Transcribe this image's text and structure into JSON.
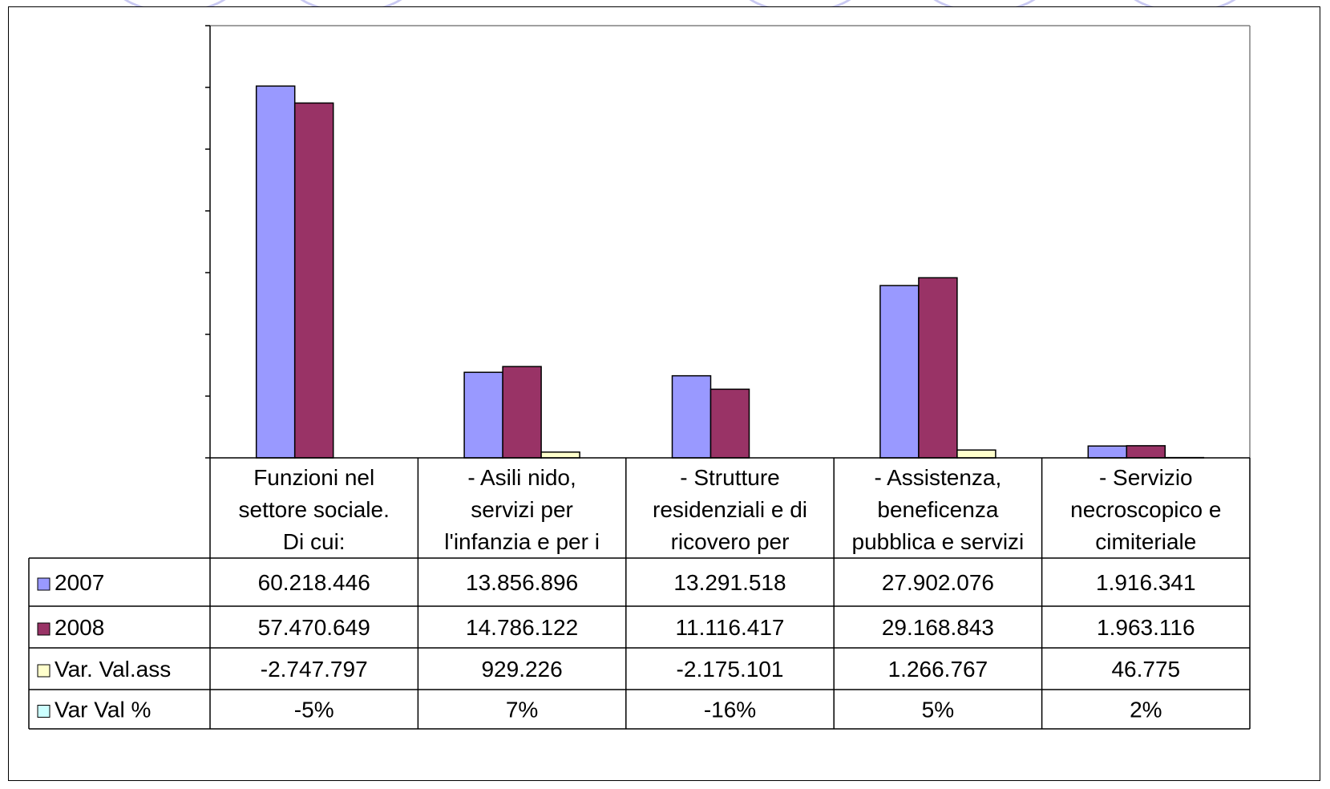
{
  "chart_data": {
    "type": "bar",
    "categories": [
      [
        "Funzioni nel",
        "settore sociale.",
        "Di cui:"
      ],
      [
        "- Asili nido,",
        "servizi per",
        "l'infanzia e per i"
      ],
      [
        "- Strutture",
        "residenziali e di",
        "ricovero per"
      ],
      [
        "- Assistenza,",
        "beneficenza",
        "pubblica e servizi"
      ],
      [
        "- Servizio",
        "necroscopico e",
        "cimiteriale"
      ]
    ],
    "series": [
      {
        "name": "2007",
        "color": "#9999ff",
        "plotted": true,
        "values": [
          60218446,
          13856896,
          13291518,
          27902076,
          1916341
        ],
        "labels": [
          "60.218.446",
          "13.856.896",
          "13.291.518",
          "27.902.076",
          "1.916.341"
        ]
      },
      {
        "name": "2008",
        "color": "#993366",
        "plotted": true,
        "values": [
          57470649,
          14786122,
          11116417,
          29168843,
          1963116
        ],
        "labels": [
          "57.470.649",
          "14.786.122",
          "11.116.417",
          "29.168.843",
          "1.963.116"
        ]
      },
      {
        "name": "Var. Val.ass",
        "color": "#ffffcc",
        "plotted": true,
        "values": [
          -2747797,
          929226,
          -2175101,
          1266767,
          46775
        ],
        "labels": [
          "-2.747.797",
          "929.226",
          "-2.175.101",
          "1.266.767",
          "46.775"
        ]
      },
      {
        "name": "Var Val %",
        "color": "#ccffff",
        "plotted": false,
        "values": [
          -5,
          7,
          -16,
          5,
          2
        ],
        "labels": [
          "-5%",
          "7%",
          "-16%",
          "5%",
          "2%"
        ]
      }
    ],
    "ylim": [
      0,
      70000000
    ],
    "grid": false,
    "legend": "data-table"
  }
}
